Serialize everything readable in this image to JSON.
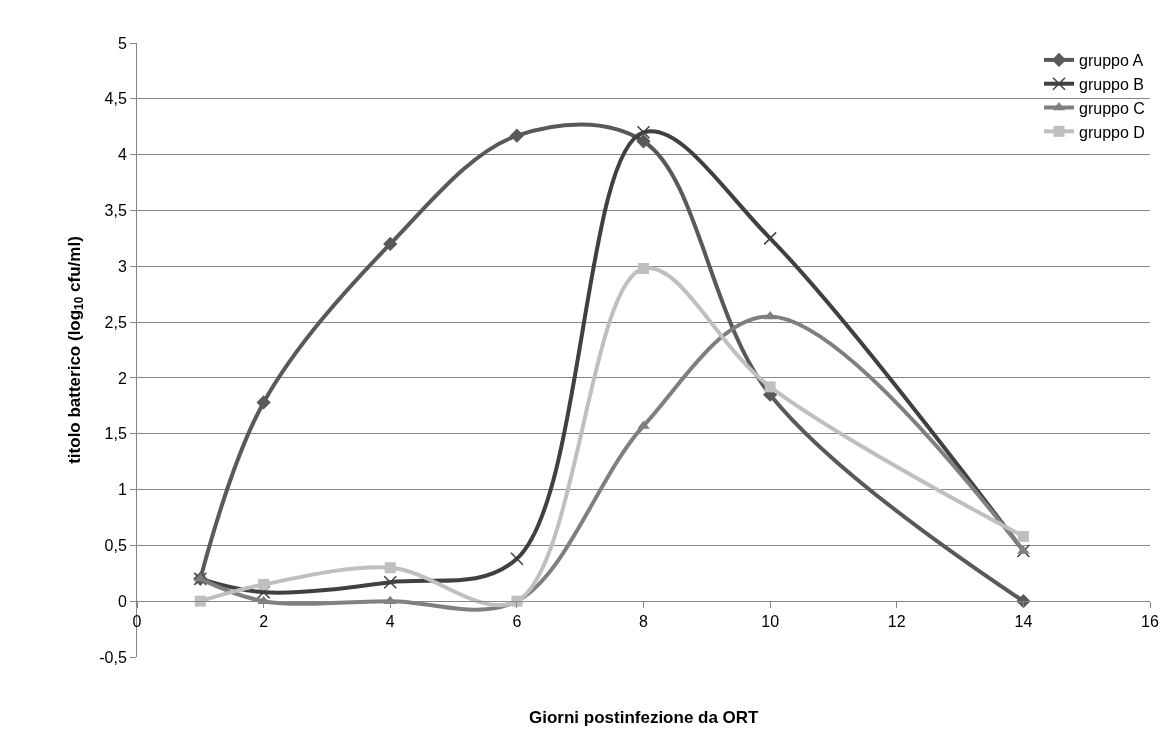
{
  "chart_data": {
    "type": "line",
    "xlabel": "Giorni postinfezione da ORT",
    "ylabel": "titolo batterico (log$_{10}$ cfu/ml)",
    "x": [
      1,
      2,
      4,
      6,
      8,
      10,
      14
    ],
    "series": [
      {
        "name": "gruppo A",
        "color": "#595959",
        "marker": "diamond",
        "values": [
          0.2,
          1.78,
          3.2,
          4.17,
          4.12,
          1.85,
          0
        ]
      },
      {
        "name": "gruppo B",
        "color": "#404040",
        "marker": "cross",
        "values": [
          0.2,
          0.08,
          0.17,
          0.38,
          4.2,
          3.25,
          0.45
        ]
      },
      {
        "name": "gruppo C",
        "color": "#7f7f7f",
        "marker": "triangle",
        "values": [
          0.2,
          0,
          0,
          0,
          1.57,
          2.55,
          0.45
        ]
      },
      {
        "name": "gruppo D",
        "color": "#bfbfbf",
        "marker": "square",
        "values": [
          0,
          0.15,
          0.3,
          0,
          2.98,
          1.92,
          0.58
        ]
      }
    ],
    "xlim": [
      0,
      16
    ],
    "xticks": [
      0,
      2,
      4,
      6,
      8,
      10,
      12,
      14,
      16
    ],
    "ylim": [
      -0.5,
      5
    ],
    "yticks": [
      {
        "value": -0.5,
        "label": "-0,5"
      },
      0,
      {
        "value": 0.5,
        "label": "0,5"
      },
      1,
      {
        "value": 1.5,
        "label": "1,5"
      },
      2,
      {
        "value": 2.5,
        "label": "2,5"
      },
      3,
      {
        "value": 3.5,
        "label": "3,5"
      },
      4,
      {
        "value": 4.5,
        "label": "4,5"
      },
      5
    ],
    "grid": "y",
    "legend": "top right"
  }
}
